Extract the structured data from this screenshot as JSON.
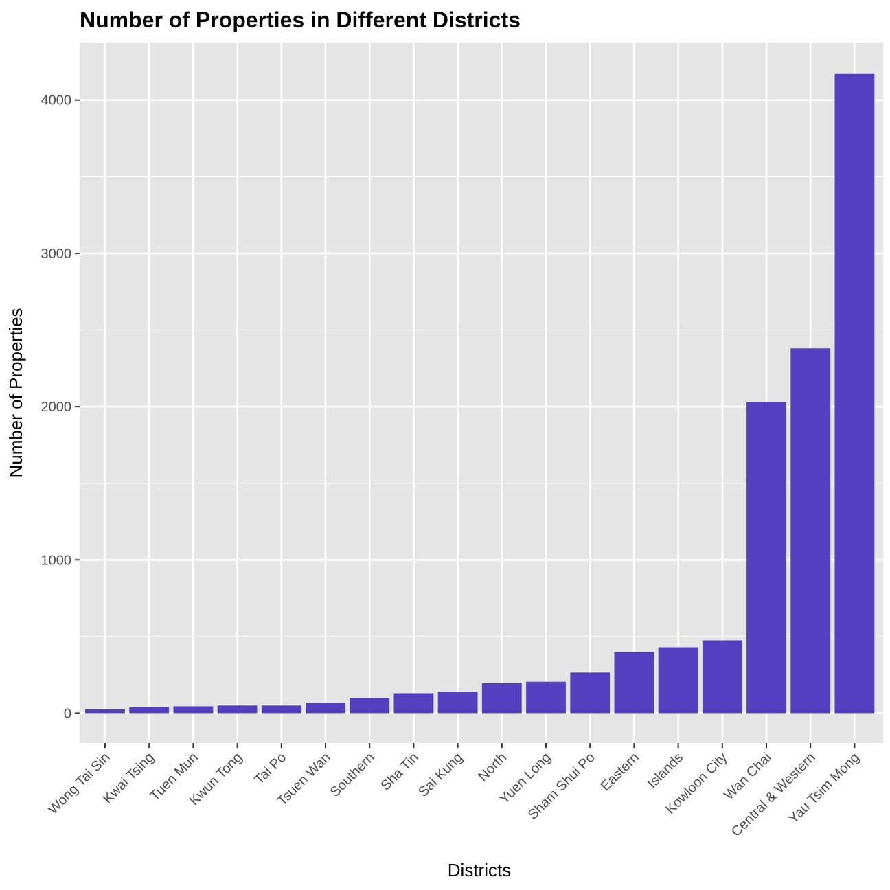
{
  "chart_data": {
    "type": "bar",
    "title": "Number of Properties in Different Districts",
    "xlabel": "Districts",
    "ylabel": "Number of Properties",
    "categories": [
      "Wong Tai Sin",
      "Kwai Tsing",
      "Tuen Mun",
      "Kwun Tong",
      "Tai Po",
      "Tsuen Wan",
      "Southern",
      "Sha Tin",
      "Sai Kung",
      "North",
      "Yuen Long",
      "Sham Shui Po",
      "Eastern",
      "Islands",
      "Kowloon City",
      "Wan Chai",
      "Central & Western",
      "Yau Tsim Mong"
    ],
    "values": [
      25,
      40,
      45,
      50,
      50,
      65,
      100,
      130,
      140,
      195,
      205,
      265,
      400,
      430,
      475,
      2030,
      2380,
      4170
    ],
    "ylim": [
      -195,
      4375
    ],
    "yticks": [
      0,
      1000,
      2000,
      3000,
      4000
    ],
    "grid": true,
    "legend": "none",
    "colors": {
      "bar": "#553FC1",
      "panel": "#E5E5E5",
      "grid": "#FFFFFF",
      "tick_text": "#4D4D4D",
      "tick_mark": "#333333"
    }
  }
}
